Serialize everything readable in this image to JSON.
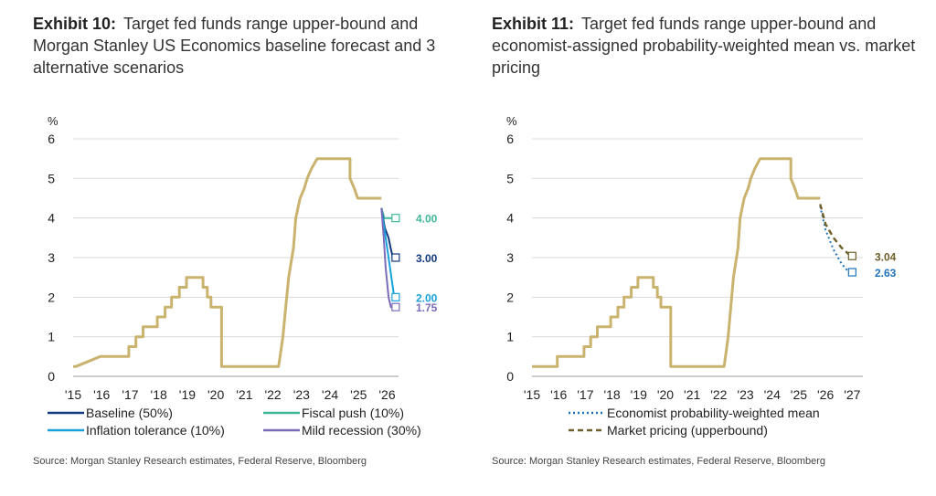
{
  "exhibits": [
    {
      "title_label": "Exhibit 10:",
      "title_text": "Target fed funds range upper-bound and Morgan Stanley US Economics baseline forecast and 3 alternative scenarios",
      "source": "Source: Morgan Stanley Research estimates, Federal Reserve, Bloomberg"
    },
    {
      "title_label": "Exhibit 11:",
      "title_text": "Target fed funds range upper-bound and economist-assigned probability-weighted mean vs. market pricing",
      "source": "Source: Morgan Stanley Research estimates, Federal Reserve, Bloomberg"
    }
  ],
  "chart_data": [
    {
      "type": "line",
      "ylabel": "%",
      "ylim": [
        0,
        6
      ],
      "yticks": [
        "0",
        "1",
        "2",
        "3",
        "4",
        "5",
        "6"
      ],
      "xlim": [
        2015,
        2026.4
      ],
      "xticks": [
        {
          "x": 2015,
          "label": "'15"
        },
        {
          "x": 2016,
          "label": "'16"
        },
        {
          "x": 2017,
          "label": "'17"
        },
        {
          "x": 2018,
          "label": "'18"
        },
        {
          "x": 2019,
          "label": "'19"
        },
        {
          "x": 2020,
          "label": "'20"
        },
        {
          "x": 2021,
          "label": "'21"
        },
        {
          "x": 2022,
          "label": "'22"
        },
        {
          "x": 2023,
          "label": "'23"
        },
        {
          "x": 2024,
          "label": "'24"
        },
        {
          "x": 2025,
          "label": "'25"
        },
        {
          "x": 2026,
          "label": "'26"
        }
      ],
      "grid": true,
      "legend_position": "bottom",
      "series": [
        {
          "key": "history",
          "color": "#C9B36E",
          "width": 3,
          "dash": "",
          "points": [
            [
              2015.0,
              0.25
            ],
            [
              2015.1,
              0.25
            ],
            [
              2015.95,
              0.5
            ],
            [
              2016.95,
              0.5
            ],
            [
              2016.95,
              0.75
            ],
            [
              2017.2,
              0.75
            ],
            [
              2017.2,
              1.0
            ],
            [
              2017.45,
              1.0
            ],
            [
              2017.45,
              1.25
            ],
            [
              2017.95,
              1.25
            ],
            [
              2017.95,
              1.5
            ],
            [
              2018.22,
              1.5
            ],
            [
              2018.22,
              1.75
            ],
            [
              2018.45,
              1.75
            ],
            [
              2018.45,
              2.0
            ],
            [
              2018.72,
              2.0
            ],
            [
              2018.72,
              2.25
            ],
            [
              2018.97,
              2.25
            ],
            [
              2018.97,
              2.5
            ],
            [
              2019.55,
              2.5
            ],
            [
              2019.55,
              2.25
            ],
            [
              2019.7,
              2.25
            ],
            [
              2019.7,
              2.0
            ],
            [
              2019.83,
              2.0
            ],
            [
              2019.83,
              1.75
            ],
            [
              2020.2,
              1.75
            ],
            [
              2020.2,
              0.25
            ],
            [
              2022.2,
              0.25
            ],
            [
              2022.25,
              0.5
            ],
            [
              2022.35,
              1.0
            ],
            [
              2022.45,
              1.75
            ],
            [
              2022.55,
              2.5
            ],
            [
              2022.72,
              3.25
            ],
            [
              2022.8,
              4.0
            ],
            [
              2022.95,
              4.5
            ],
            [
              2023.1,
              4.75
            ],
            [
              2023.2,
              5.0
            ],
            [
              2023.35,
              5.25
            ],
            [
              2023.55,
              5.5
            ],
            [
              2024.7,
              5.5
            ],
            [
              2024.7,
              5.0
            ],
            [
              2024.85,
              4.75
            ],
            [
              2024.97,
              4.5
            ],
            [
              2025.8,
              4.5
            ]
          ]
        },
        {
          "key": "fiscal",
          "name": "Fiscal push (10%)",
          "color": "#3FB99A",
          "width": 2,
          "dash": "",
          "points": [
            [
              2025.8,
              4.25
            ],
            [
              2025.9,
              4.0
            ],
            [
              2026.3,
              4.0
            ]
          ],
          "end_label": "4.00",
          "end_value": 4.0
        },
        {
          "key": "baseline",
          "name": "Baseline (50%)",
          "color": "#11397E",
          "width": 2,
          "dash": "",
          "points": [
            [
              2025.8,
              4.25
            ],
            [
              2025.92,
              3.75
            ],
            [
              2026.05,
              3.5
            ],
            [
              2026.12,
              3.25
            ],
            [
              2026.2,
              3.0
            ],
            [
              2026.3,
              3.0
            ]
          ],
          "end_label": "3.00",
          "end_value": 3.0
        },
        {
          "key": "inflation",
          "name": "Inflation tolerance (10%)",
          "color": "#17A2DC",
          "width": 2,
          "dash": "",
          "points": [
            [
              2025.8,
              4.25
            ],
            [
              2025.95,
              3.5
            ],
            [
              2026.05,
              3.0
            ],
            [
              2026.15,
              2.5
            ],
            [
              2026.25,
              2.0
            ],
            [
              2026.3,
              2.0
            ]
          ],
          "end_label": "2.00",
          "end_value": 2.0
        },
        {
          "key": "recession",
          "name": "Mild recession (30%)",
          "color": "#7B6BB8",
          "width": 2,
          "dash": "",
          "points": [
            [
              2025.8,
              4.25
            ],
            [
              2025.88,
              3.5
            ],
            [
              2025.95,
              2.75
            ],
            [
              2026.05,
              2.0
            ],
            [
              2026.13,
              1.75
            ],
            [
              2026.3,
              1.75
            ]
          ],
          "end_label": "1.75",
          "end_value": 1.75
        }
      ],
      "legend": [
        {
          "key": "baseline",
          "label": "Baseline (50%)",
          "color": "#11397E",
          "dash": ""
        },
        {
          "key": "fiscal",
          "label": "Fiscal push (10%)",
          "color": "#3FB99A",
          "dash": ""
        },
        {
          "key": "inflation",
          "label": "Inflation tolerance (10%)",
          "color": "#17A2DC",
          "dash": ""
        },
        {
          "key": "recession",
          "label": "Mild recession (30%)",
          "color": "#7B6BB8",
          "dash": ""
        }
      ]
    },
    {
      "type": "line",
      "ylabel": "%",
      "ylim": [
        0,
        6
      ],
      "yticks": [
        "0",
        "1",
        "2",
        "3",
        "4",
        "5",
        "6"
      ],
      "xlim": [
        2015,
        2027.4
      ],
      "xticks": [
        {
          "x": 2015,
          "label": "'15"
        },
        {
          "x": 2016,
          "label": "'16"
        },
        {
          "x": 2017,
          "label": "'17"
        },
        {
          "x": 2018,
          "label": "'18"
        },
        {
          "x": 2019,
          "label": "'19"
        },
        {
          "x": 2020,
          "label": "'20"
        },
        {
          "x": 2021,
          "label": "'21"
        },
        {
          "x": 2022,
          "label": "'22"
        },
        {
          "x": 2023,
          "label": "'23"
        },
        {
          "x": 2024,
          "label": "'24"
        },
        {
          "x": 2025,
          "label": "'25"
        },
        {
          "x": 2026,
          "label": "'26"
        },
        {
          "x": 2027,
          "label": "'27"
        }
      ],
      "grid": true,
      "legend_position": "bottom",
      "series": [
        {
          "key": "history",
          "color": "#C9B36E",
          "width": 3,
          "dash": "",
          "points": [
            [
              2015.0,
              0.25
            ],
            [
              2015.95,
              0.25
            ],
            [
              2015.95,
              0.5
            ],
            [
              2016.95,
              0.5
            ],
            [
              2016.95,
              0.75
            ],
            [
              2017.2,
              0.75
            ],
            [
              2017.2,
              1.0
            ],
            [
              2017.45,
              1.0
            ],
            [
              2017.45,
              1.25
            ],
            [
              2017.95,
              1.25
            ],
            [
              2017.95,
              1.5
            ],
            [
              2018.22,
              1.5
            ],
            [
              2018.22,
              1.75
            ],
            [
              2018.45,
              1.75
            ],
            [
              2018.45,
              2.0
            ],
            [
              2018.72,
              2.0
            ],
            [
              2018.72,
              2.25
            ],
            [
              2018.97,
              2.25
            ],
            [
              2018.97,
              2.5
            ],
            [
              2019.55,
              2.5
            ],
            [
              2019.55,
              2.25
            ],
            [
              2019.7,
              2.25
            ],
            [
              2019.7,
              2.0
            ],
            [
              2019.83,
              2.0
            ],
            [
              2019.83,
              1.75
            ],
            [
              2020.2,
              1.75
            ],
            [
              2020.2,
              0.25
            ],
            [
              2022.2,
              0.25
            ],
            [
              2022.25,
              0.5
            ],
            [
              2022.35,
              1.0
            ],
            [
              2022.45,
              1.75
            ],
            [
              2022.55,
              2.5
            ],
            [
              2022.72,
              3.25
            ],
            [
              2022.8,
              4.0
            ],
            [
              2022.95,
              4.5
            ],
            [
              2023.1,
              4.75
            ],
            [
              2023.2,
              5.0
            ],
            [
              2023.35,
              5.25
            ],
            [
              2023.55,
              5.5
            ],
            [
              2024.7,
              5.5
            ],
            [
              2024.7,
              5.0
            ],
            [
              2024.85,
              4.75
            ],
            [
              2024.97,
              4.5
            ],
            [
              2025.8,
              4.5
            ]
          ]
        },
        {
          "key": "mean",
          "name": "Economist probability-weighted mean",
          "color": "#1F72B8",
          "width": 2,
          "dash": "2,3",
          "points": [
            [
              2025.8,
              4.3
            ],
            [
              2026.0,
              3.7
            ],
            [
              2026.3,
              3.2
            ],
            [
              2026.6,
              2.85
            ],
            [
              2026.85,
              2.65
            ],
            [
              2027.0,
              2.63
            ]
          ],
          "end_label": "2.63",
          "end_value": 2.63
        },
        {
          "key": "market",
          "name": "Market pricing (upperbound)",
          "color": "#6F5F2A",
          "width": 2.4,
          "dash": "6,4",
          "points": [
            [
              2025.8,
              4.35
            ],
            [
              2026.0,
              3.85
            ],
            [
              2026.3,
              3.5
            ],
            [
              2026.6,
              3.25
            ],
            [
              2026.85,
              3.1
            ],
            [
              2027.0,
              3.04
            ]
          ],
          "end_label": "3.04",
          "end_value": 3.04
        }
      ],
      "legend": [
        {
          "key": "mean",
          "label": "Economist probability-weighted mean",
          "color": "#1F72B8",
          "dash": "2,3"
        },
        {
          "key": "market",
          "label": "Market pricing (upperbound)",
          "color": "#6F5F2A",
          "dash": "6,4"
        }
      ]
    }
  ]
}
